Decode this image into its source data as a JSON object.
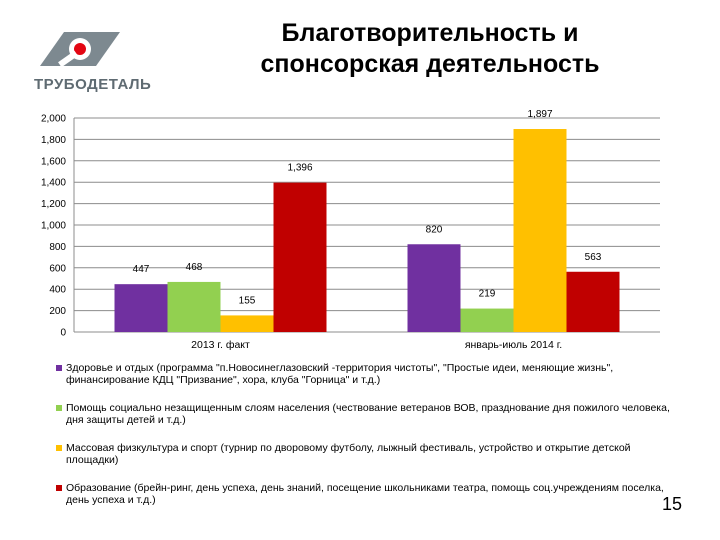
{
  "slide": {
    "logo_text": "ТРУБОДЕТАЛЬ",
    "title_line1": "Благотворительность и",
    "title_line2": "спонсорская деятельность",
    "page_number": "15"
  },
  "chart_data": {
    "type": "bar",
    "categories": [
      "2013 г. факт",
      "январь-июль 2014 г."
    ],
    "series": [
      {
        "name": "Здоровье и отдых (программа \"п.Новосинеглазовский -территория чистоты\", \"Простые идеи, меняющие жизнь\", финансирование КДЦ \"Призвание\", хора, клуба \"Горница\" и т.д.)",
        "color": "#7030a0",
        "values": [
          447,
          820
        ]
      },
      {
        "name": "Помощь социально незащищенным слоям населения (чествование ветеранов ВОВ, празднование дня пожилого человека, дня защиты детей и т.д.)",
        "color": "#92d050",
        "values": [
          468,
          219
        ]
      },
      {
        "name": "Массовая физкультура и спорт (турнир по дворовому футболу, лыжный фестиваль, устройство и открытие детской площадки)",
        "color": "#ffc000",
        "values": [
          155,
          1897
        ]
      },
      {
        "name": "Образование (брейн-ринг, день успеха, день знаний, посещение школьниками театра, помощь соц.учреждениям поселка, день успеха и т.д.)",
        "color": "#c00000",
        "values": [
          1396,
          563
        ]
      }
    ],
    "data_labels": [
      [
        "447",
        "820"
      ],
      [
        "468",
        "219"
      ],
      [
        "155",
        "1,897"
      ],
      [
        "1,396",
        "563"
      ]
    ],
    "ylim": [
      0,
      2000
    ],
    "yticks": [
      "0",
      "200",
      "400",
      "600",
      "800",
      "1,000",
      "1,200",
      "1,400",
      "1,600",
      "1,800",
      "2,000"
    ],
    "grid": true,
    "legend_position": "bottom"
  }
}
